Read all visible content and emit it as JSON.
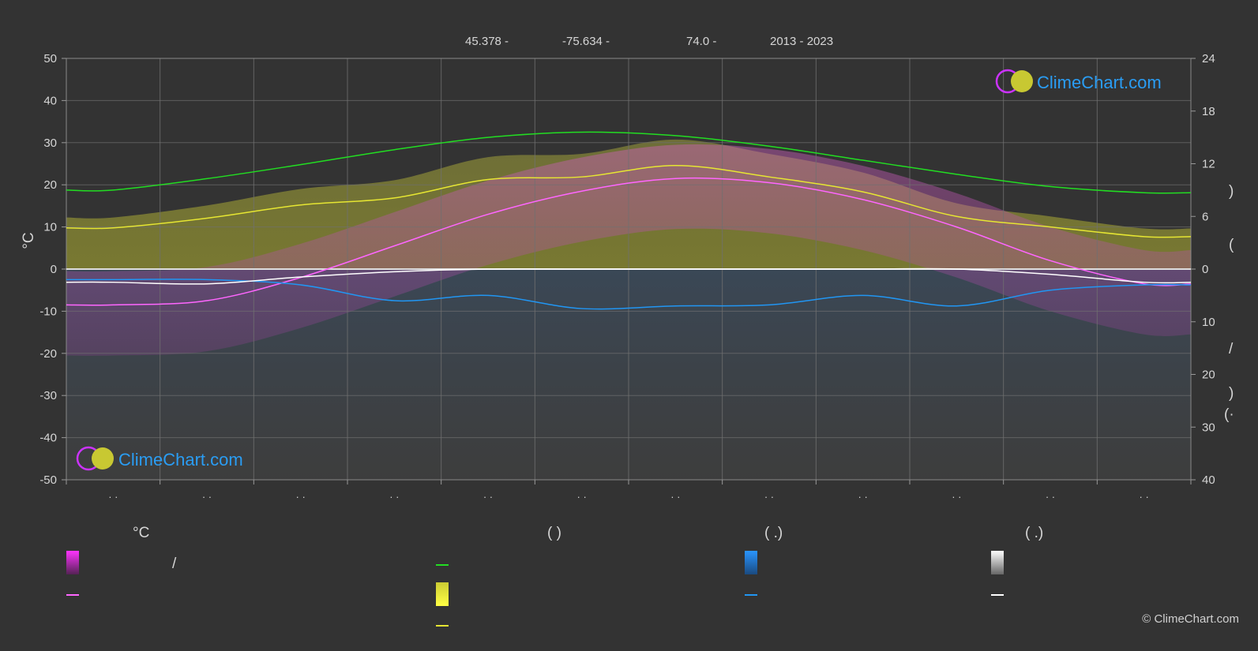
{
  "header": {
    "lat": "45.378 -",
    "lon": "-75.634 -",
    "elev": "74.0 -",
    "years": "2013 - 2023"
  },
  "branding": {
    "name": "ClimeChart.com",
    "copyright": "© ClimeChart.com"
  },
  "colors": {
    "background": "#333333",
    "daylight": "#22dd22",
    "sunshine": "#e6e632",
    "temp": "#ff66ff",
    "precip": "#2196f3",
    "snow": "#ffffff",
    "grid": "#707070"
  },
  "chart_data": {
    "type": "line",
    "ylabel_left": "°C",
    "y_left_range": [
      -50,
      50
    ],
    "y_left_ticks": [
      "50",
      "40",
      "30",
      "20",
      "10",
      "0",
      "-10",
      "-20",
      "-30",
      "-40",
      "-50"
    ],
    "y_right_top_ticks": [
      "24",
      "18",
      "12",
      "6",
      "0"
    ],
    "y_right_bottom_ticks": [
      "10",
      "20",
      "30",
      "40"
    ],
    "right_axis_labels": [
      ")",
      "(",
      "/",
      ")",
      "(·"
    ],
    "x_tick_labels": [
      "· ·",
      "· ·",
      "· ·",
      "· ·",
      "· ·",
      "· ·",
      "· ·",
      "· ·",
      "· ·",
      "· ·",
      "· ·",
      "· ·"
    ],
    "x_months": [
      0,
      1,
      2,
      3,
      4,
      5,
      6,
      7,
      8,
      9,
      10,
      11
    ],
    "series": [
      {
        "key": "daylight",
        "values": [
          9.0,
          10.3,
          11.9,
          13.6,
          15.0,
          15.6,
          15.2,
          14.0,
          12.4,
          10.8,
          9.4,
          8.7
        ]
      },
      {
        "key": "sunshine",
        "values": [
          4.7,
          5.8,
          7.3,
          8.1,
          10.2,
          10.5,
          11.8,
          10.5,
          8.8,
          6.0,
          4.8,
          3.7
        ]
      },
      {
        "key": "temp",
        "values": [
          -8.5,
          -7.5,
          -2.0,
          5.5,
          13.0,
          18.5,
          21.5,
          20.5,
          16.5,
          10.0,
          2.0,
          -3.5
        ]
      },
      {
        "key": "precip",
        "values": [
          2.0,
          2.0,
          3.0,
          6.0,
          5.0,
          7.5,
          7.0,
          6.8,
          5.0,
          7.0,
          4.0,
          3.0
        ]
      },
      {
        "key": "snow",
        "values": [
          2.5,
          2.8,
          1.5,
          0.5,
          0.0,
          0.0,
          0.0,
          0.0,
          0.0,
          0.0,
          1.0,
          2.5
        ]
      }
    ]
  },
  "legend": {
    "groups": [
      {
        "title": "°C",
        "items": [
          "/",
          ""
        ]
      },
      {
        "title": "(          )",
        "items": [
          "",
          "",
          ""
        ]
      },
      {
        "title": "(    .)",
        "items": [
          "",
          ""
        ]
      },
      {
        "title": "(    .)",
        "items": [
          "",
          ""
        ]
      }
    ]
  }
}
